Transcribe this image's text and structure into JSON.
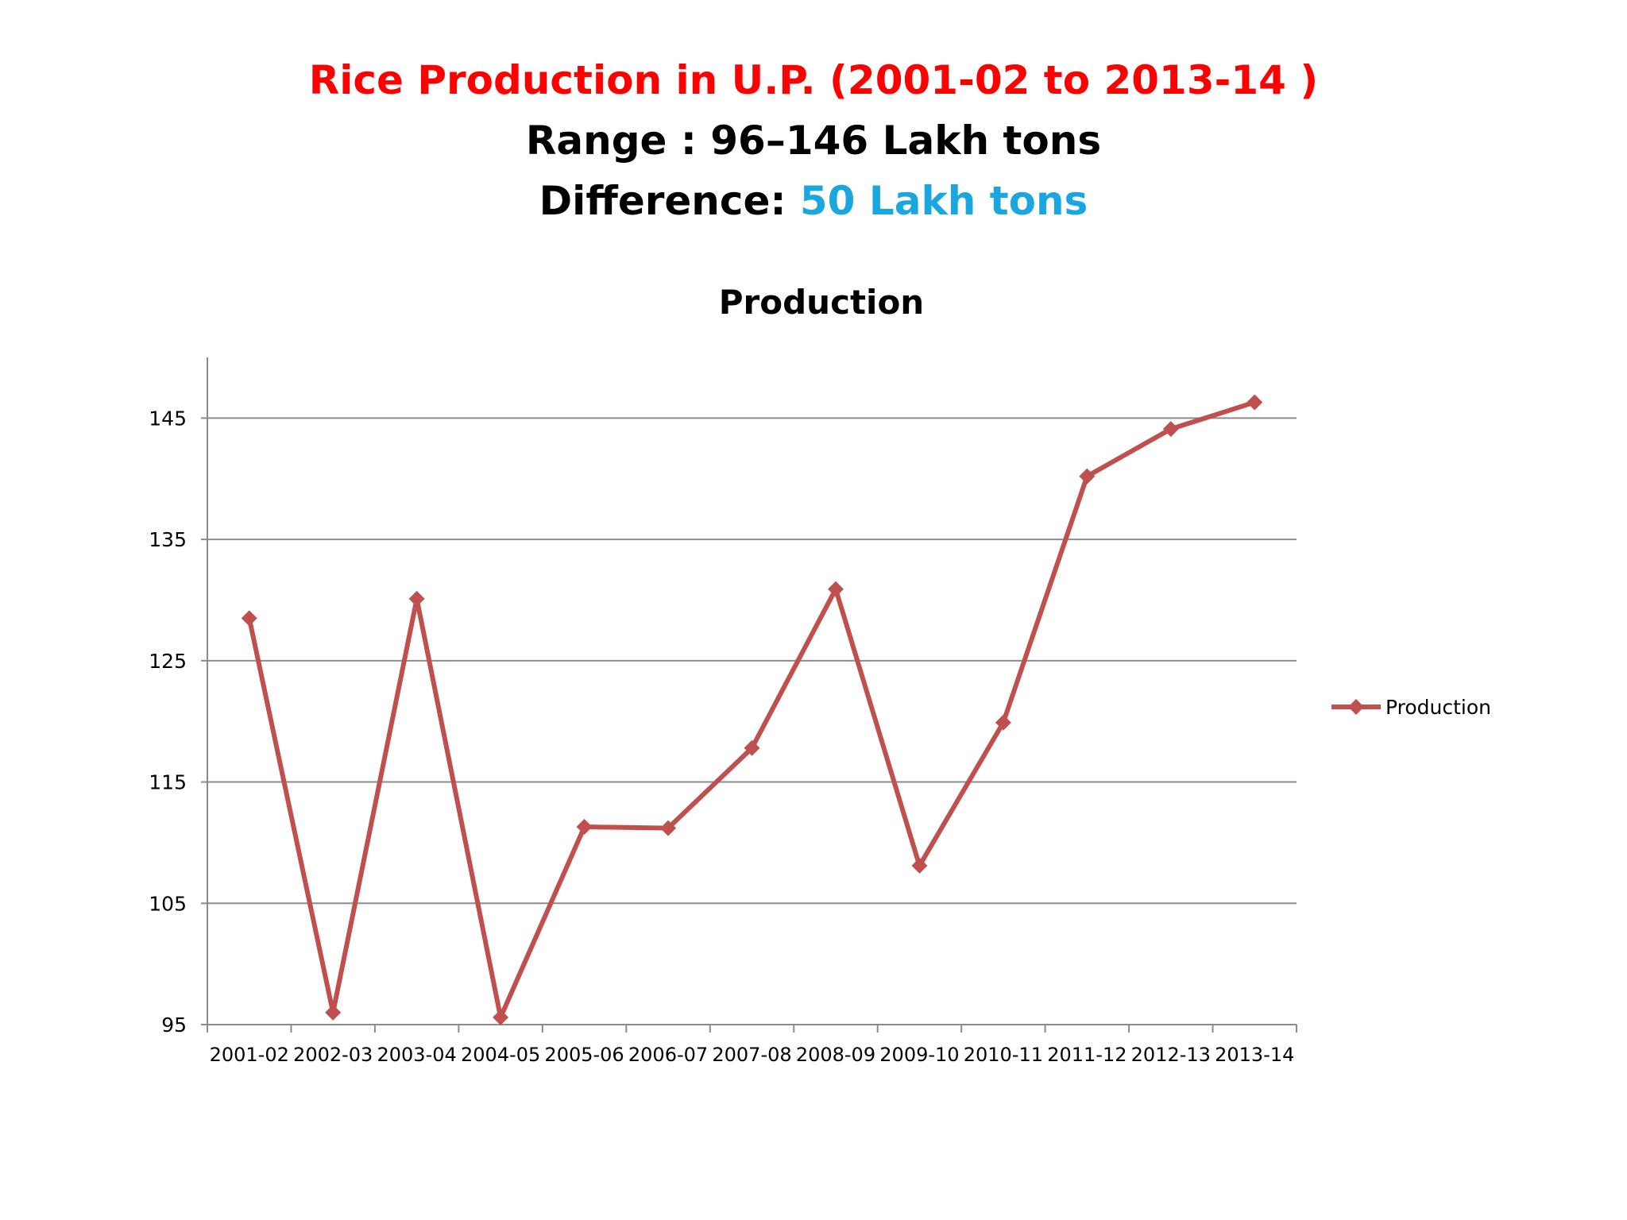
{
  "slide": {
    "title": "Rice Production in U.P. (2001-02 to 2013-14 )",
    "range_text": "Range : 96–146 Lakh tons",
    "difference_label": "Difference: ",
    "difference_value": "50 Lakh tons",
    "colors": {
      "title": "#ff0000",
      "text": "#000000",
      "difference_value": "#1aa7e0"
    }
  },
  "chart_data": {
    "type": "line",
    "title": "Production",
    "xlabel": "",
    "ylabel": "",
    "categories": [
      "2001-02",
      "2002-03",
      "2003-04",
      "2004-05",
      "2005-06",
      "2006-07",
      "2007-08",
      "2008-09",
      "2009-10",
      "2010-11",
      "2011-12",
      "2012-13",
      "2013-14"
    ],
    "series": [
      {
        "name": "Production",
        "color": "#c0504d",
        "marker": "diamond",
        "values": [
          128.5,
          96.0,
          130.1,
          95.6,
          111.3,
          111.2,
          117.8,
          130.9,
          108.1,
          119.9,
          140.2,
          144.1,
          146.3
        ]
      }
    ],
    "ylim": [
      95,
      150
    ],
    "yticks": [
      "95",
      "105",
      "115",
      "125",
      "135",
      "145"
    ],
    "grid": true,
    "legend": "right"
  }
}
